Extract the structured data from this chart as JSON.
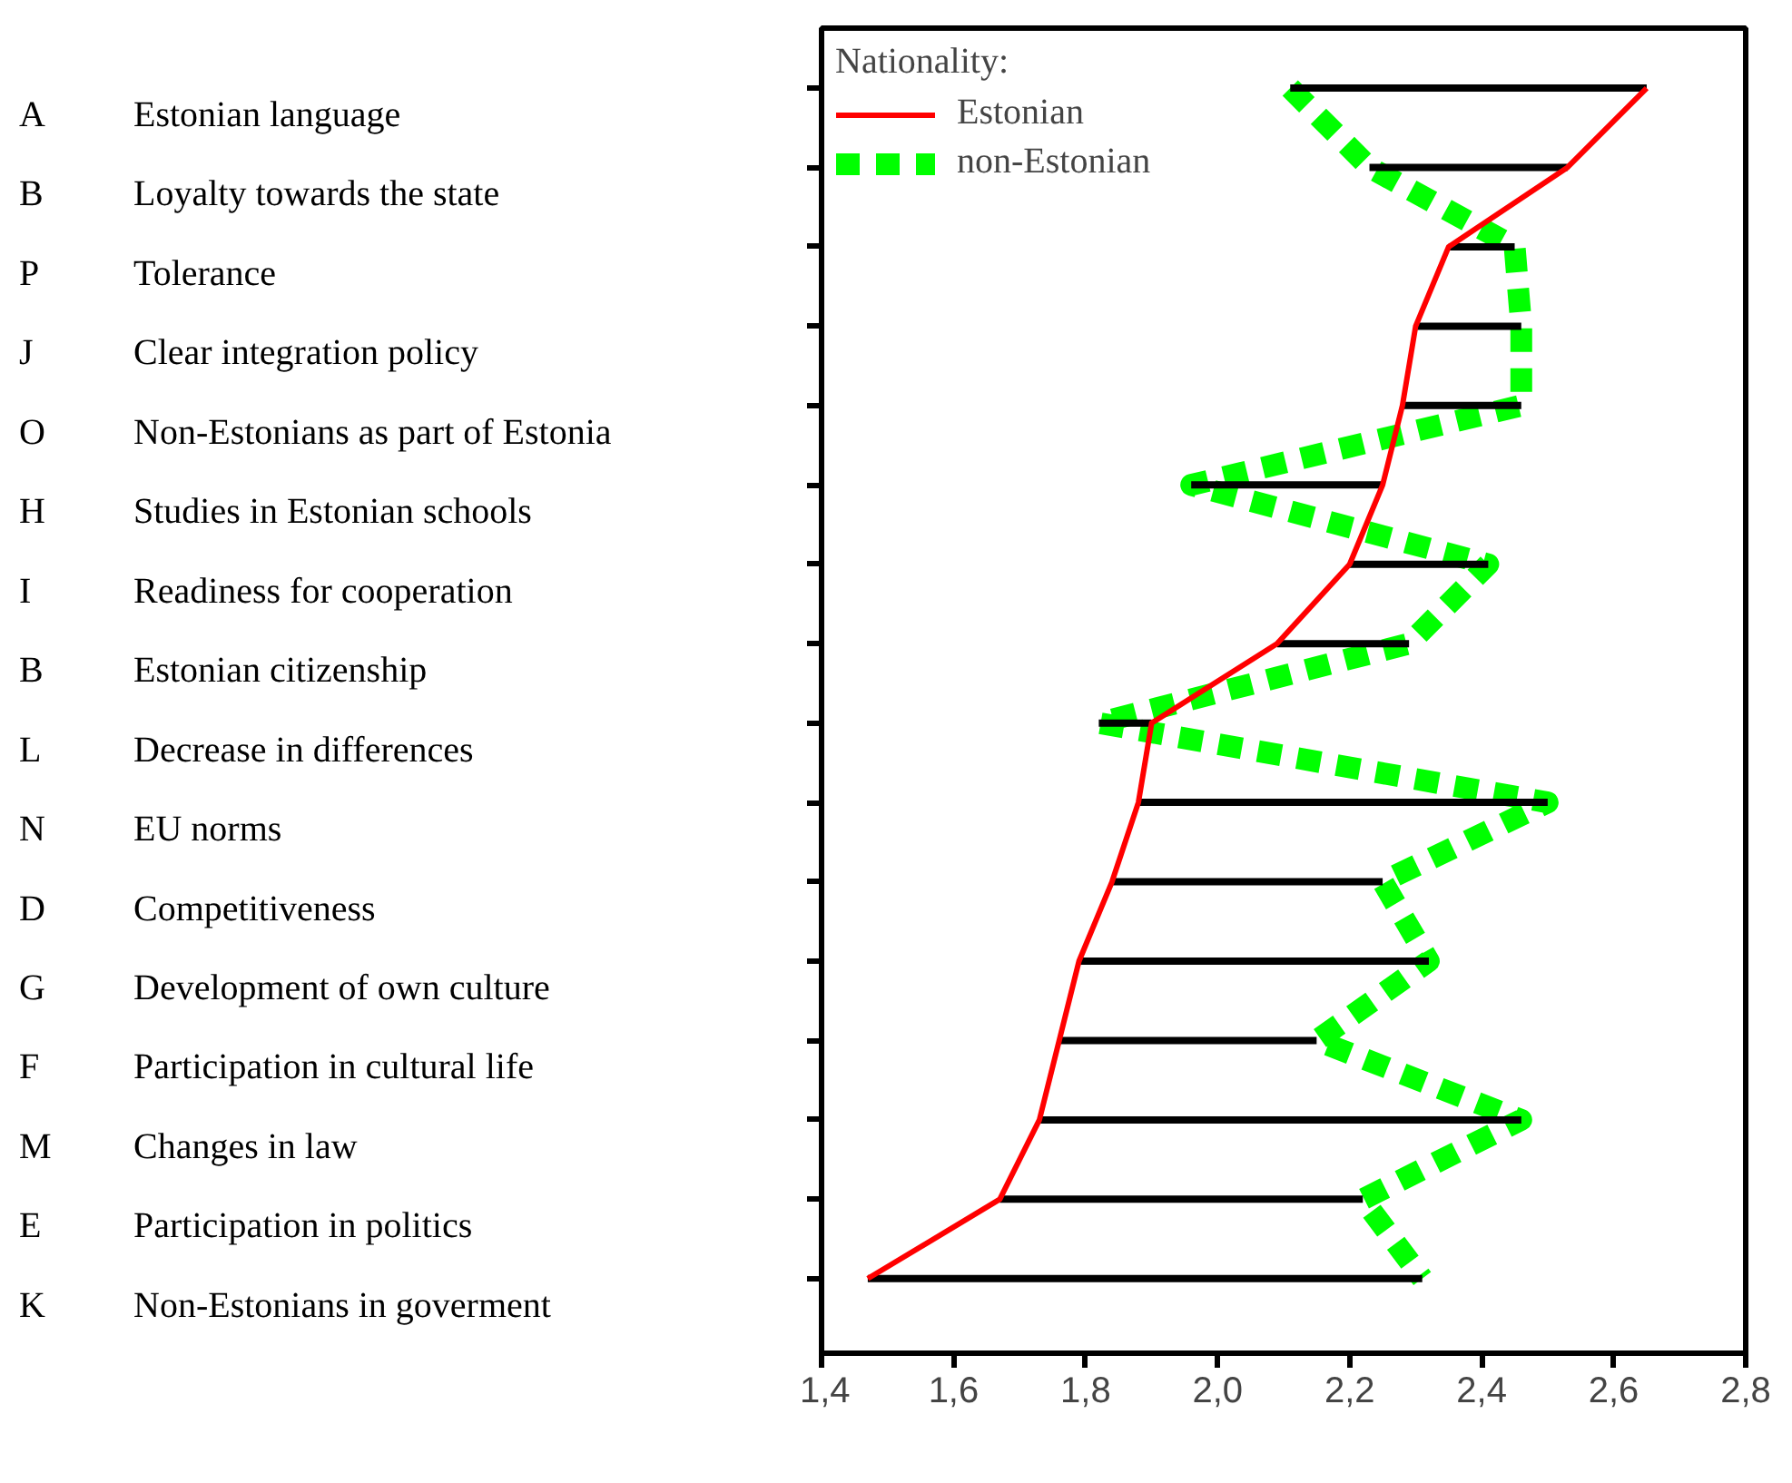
{
  "chart_data": {
    "type": "line",
    "orientation": "horizontal",
    "categories": [
      "A Estonian language",
      "B Loyalty towards the state",
      "P Tolerance",
      "J Clear integration policy",
      "O Non-Estonians as part of Estonia",
      "H Studies in Estonian schools",
      "I Readiness for cooperation",
      "B Estonian citizenship",
      "L Decrease in differences",
      "N EU norms",
      "D Competitiveness",
      "G Development of own culture",
      "F Participation in cultural life",
      "M Changes in law",
      "E Participation in politics",
      "K Non-Estonians in goverment"
    ],
    "series": [
      {
        "name": "Estonian",
        "color": "#ff0000",
        "line_style": "solid",
        "values": [
          2.65,
          2.53,
          2.35,
          2.3,
          2.28,
          2.25,
          2.2,
          2.09,
          1.9,
          1.88,
          1.84,
          1.79,
          1.76,
          1.73,
          1.67,
          1.47
        ],
        "errors": [
          [
            2.11,
            2.65
          ],
          [
            2.23,
            2.53
          ],
          [
            2.35,
            2.45
          ],
          [
            2.3,
            2.46
          ],
          [
            2.28,
            2.46
          ],
          [
            1.96,
            2.25
          ],
          [
            2.2,
            2.41
          ],
          [
            2.09,
            2.29
          ],
          [
            1.82,
            1.9
          ],
          [
            1.88,
            2.5
          ],
          [
            1.84,
            2.25
          ],
          [
            1.79,
            2.32
          ],
          [
            1.76,
            2.15
          ],
          [
            1.73,
            2.46
          ],
          [
            1.67,
            2.22
          ],
          [
            1.47,
            2.31
          ]
        ]
      },
      {
        "name": "non-Estonian",
        "color": "#00ff00",
        "line_style": "dashed",
        "values": [
          2.11,
          2.23,
          2.45,
          2.46,
          2.46,
          1.96,
          2.41,
          2.29,
          1.82,
          2.5,
          2.25,
          2.32,
          2.15,
          2.46,
          2.22,
          2.31
        ]
      }
    ],
    "xlim": [
      1.4,
      2.8
    ],
    "xticks": [
      {
        "value": 1.4,
        "label": "1,4"
      },
      {
        "value": 1.6,
        "label": "1,6"
      },
      {
        "value": 1.8,
        "label": "1,8"
      },
      {
        "value": 2.0,
        "label": "2,0"
      },
      {
        "value": 2.2,
        "label": "2,2"
      },
      {
        "value": 2.4,
        "label": "2,4"
      },
      {
        "value": 2.6,
        "label": "2,6"
      },
      {
        "value": 2.8,
        "label": "2,8"
      }
    ],
    "legend_title": "Nationality:",
    "legend": "top left",
    "grid": false
  }
}
